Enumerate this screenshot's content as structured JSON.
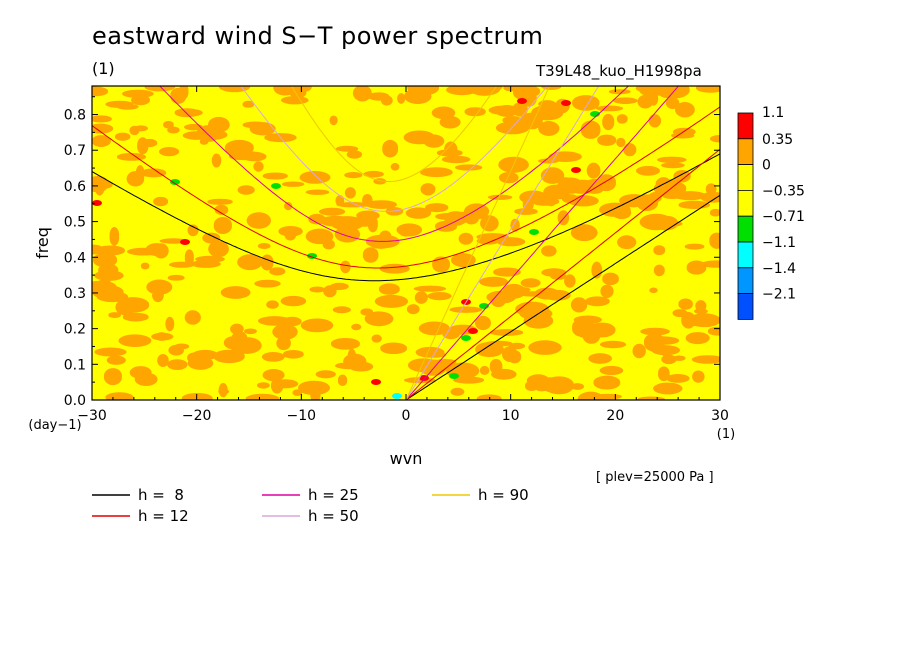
{
  "title": "eastward wind S−T power spectrum",
  "subtitle": "(1)",
  "run_label": "T39L48_kuo_H1998pa",
  "level_label": "[ plev=25000 Pa ]",
  "colors": {
    "c_ge_1_1": "#ff0000",
    "c_0_35": "#ffa500",
    "c_0": "#ffff00",
    "c_m0_35": "#ffff00",
    "c_m0_71": "#00e000",
    "c_m1_1": "#00ffff",
    "c_m1_4": "#0096ff",
    "c_m2_1": "#0050ff",
    "h8": "#000000",
    "h12": "#e00000",
    "h25": "#e000a0",
    "h50": "#d8a8d8",
    "h90": "#f0c800"
  },
  "chart_data": {
    "type": "heatmap",
    "title": "eastward wind S−T power spectrum",
    "xlabel": "wvn",
    "xunit": "(1)",
    "ylabel": "freq",
    "yunit": "(day−1)",
    "xlim": [
      -30,
      30
    ],
    "ylim": [
      0,
      0.88
    ],
    "xticks": [
      -30,
      -20,
      -10,
      0,
      10,
      20,
      30
    ],
    "yticks": [
      0.0,
      0.1,
      0.2,
      0.3,
      0.4,
      0.5,
      0.6,
      0.7,
      0.8
    ],
    "ytick_labels": [
      "0.0",
      "0.1",
      "0.2",
      "0.3",
      "0.4",
      "0.5",
      "0.6",
      "0.7",
      "0.8"
    ],
    "colorbar_levels": [
      "1.1",
      "0.35",
      "0",
      "−0.35",
      "−0.71",
      "−1.1",
      "−1.4",
      "−2.1"
    ],
    "dispersion_curves": [
      {
        "name": "h =  8",
        "h": 8
      },
      {
        "name": "h = 12",
        "h": 12
      },
      {
        "name": "h = 25",
        "h": 25
      },
      {
        "name": "h = 50",
        "h": 50
      },
      {
        "name": "h = 90",
        "h": 90
      }
    ],
    "field_note": "noisy spectral field mostly between -0.35 and 0.35, isolated patches up to 1.1 and down to -0.71"
  }
}
